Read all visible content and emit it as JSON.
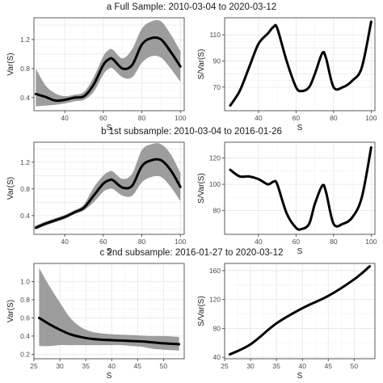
{
  "rows": [
    {
      "label": "a  Full Sample: 2010-03-04 to 2020-03-12"
    },
    {
      "label": "b  1st subsample: 2010-03-04 to 2016-01-26"
    },
    {
      "label": "c  2nd subsample: 2016-01-27 to 2020-03-12"
    }
  ],
  "chart_data": [
    {
      "id": "a-var",
      "type": "line",
      "xlabel": "S",
      "ylabel": "Var(S)",
      "xlim": [
        24,
        102
      ],
      "ylim": [
        0.22,
        1.5
      ],
      "grid": true,
      "legend": "none",
      "xticks": [
        40,
        60,
        80,
        100
      ],
      "yticks": [
        0.4,
        0.6,
        0.8,
        1.0,
        1.2,
        1.4
      ],
      "xtick_labels": [
        "40",
        "60",
        "80",
        "100"
      ],
      "ytick_labels": [
        "0.4",
        "",
        "0.8",
        "",
        "1.2",
        ""
      ],
      "series": [
        {
          "x": [
            25,
            30,
            35,
            40,
            45,
            50,
            55,
            60,
            63,
            65,
            70,
            75,
            80,
            85,
            90,
            95,
            100
          ],
          "y": [
            0.45,
            0.41,
            0.36,
            0.37,
            0.4,
            0.42,
            0.58,
            0.85,
            0.93,
            0.93,
            0.8,
            0.85,
            1.13,
            1.22,
            1.2,
            1.03,
            0.83
          ],
          "lower": [
            0.28,
            0.29,
            0.3,
            0.32,
            0.35,
            0.37,
            0.48,
            0.72,
            0.8,
            0.8,
            0.68,
            0.68,
            0.88,
            0.97,
            0.95,
            0.8,
            0.62
          ],
          "upper": [
            0.8,
            0.57,
            0.46,
            0.42,
            0.44,
            0.48,
            0.68,
            0.97,
            1.06,
            1.06,
            0.94,
            1.07,
            1.35,
            1.45,
            1.45,
            1.27,
            1.04
          ]
        }
      ]
    },
    {
      "id": "a-ratio",
      "type": "line",
      "xlabel": "S",
      "ylabel": "S/Var(S)",
      "xlim": [
        22,
        102
      ],
      "ylim": [
        52,
        123
      ],
      "grid": true,
      "legend": "none",
      "xticks": [
        40,
        60,
        80,
        100
      ],
      "yticks": [
        70,
        80,
        90,
        100,
        110
      ],
      "xtick_labels": [
        "40",
        "60",
        "80",
        "100"
      ],
      "ytick_labels": [
        "70",
        "",
        "90",
        "",
        "110"
      ],
      "series": [
        {
          "x": [
            25,
            30,
            35,
            40,
            45,
            48,
            50,
            55,
            60,
            63,
            67,
            70,
            74,
            76,
            80,
            85,
            90,
            95,
            100
          ],
          "y": [
            56,
            67,
            85,
            103,
            111,
            116,
            115,
            90,
            70,
            67,
            70,
            80,
            96,
            92,
            70,
            70,
            75,
            85,
            120
          ]
        }
      ]
    },
    {
      "id": "b-var",
      "type": "line",
      "xlabel": "S",
      "ylabel": "Var(S)",
      "xlim": [
        24,
        102
      ],
      "ylim": [
        0.12,
        1.5
      ],
      "grid": true,
      "legend": "none",
      "xticks": [
        40,
        60,
        80,
        100
      ],
      "yticks": [
        0.2,
        0.4,
        0.6,
        0.8,
        1.0,
        1.2,
        1.4
      ],
      "xtick_labels": [
        "40",
        "60",
        "80",
        "100"
      ],
      "ytick_labels": [
        "",
        "0.4",
        "",
        "0.8",
        "",
        "1.2",
        ""
      ],
      "series": [
        {
          "x": [
            25,
            30,
            35,
            40,
            45,
            50,
            55,
            60,
            63,
            65,
            70,
            75,
            80,
            85,
            90,
            95,
            100
          ],
          "y": [
            0.22,
            0.28,
            0.33,
            0.38,
            0.45,
            0.52,
            0.7,
            0.88,
            0.93,
            0.93,
            0.82,
            0.85,
            1.14,
            1.23,
            1.23,
            1.08,
            0.83
          ],
          "lower": [
            0.19,
            0.25,
            0.3,
            0.35,
            0.42,
            0.48,
            0.6,
            0.76,
            0.8,
            0.8,
            0.7,
            0.7,
            0.9,
            0.98,
            0.98,
            0.83,
            0.62
          ],
          "upper": [
            0.25,
            0.31,
            0.36,
            0.41,
            0.48,
            0.57,
            0.82,
            1.0,
            1.06,
            1.06,
            0.95,
            1.03,
            1.38,
            1.47,
            1.47,
            1.32,
            1.04
          ]
        }
      ]
    },
    {
      "id": "b-ratio",
      "type": "line",
      "xlabel": "S",
      "ylabel": "S/Var(S)",
      "xlim": [
        22,
        102
      ],
      "ylim": [
        62,
        132
      ],
      "grid": true,
      "legend": "none",
      "xticks": [
        40,
        60,
        80,
        100
      ],
      "yticks": [
        80,
        100,
        120
      ],
      "xtick_labels": [
        "40",
        "60",
        "80",
        "100"
      ],
      "ytick_labels": [
        "80",
        "100",
        "120"
      ],
      "series": [
        {
          "x": [
            25,
            30,
            35,
            40,
            45,
            48,
            50,
            55,
            60,
            63,
            67,
            70,
            74,
            76,
            80,
            85,
            90,
            95,
            100
          ],
          "y": [
            111,
            106,
            106,
            104,
            100,
            102,
            100,
            78,
            67,
            66,
            70,
            85,
            99,
            94,
            70,
            70,
            75,
            90,
            128
          ]
        }
      ]
    },
    {
      "id": "c-var",
      "type": "line",
      "xlabel": "S",
      "ylabel": "Var(S)",
      "xlim": [
        25,
        54
      ],
      "ylim": [
        0.15,
        1.2
      ],
      "grid": true,
      "legend": "none",
      "xticks": [
        25,
        30,
        35,
        40,
        45,
        50
      ],
      "yticks": [
        0.2,
        0.4,
        0.6,
        0.8,
        1.0
      ],
      "xtick_labels": [
        "25",
        "30",
        "35",
        "40",
        "45",
        "50"
      ],
      "ytick_labels": [
        "0.2",
        "0.4",
        "0.6",
        "0.8",
        "1.0"
      ],
      "series": [
        {
          "x": [
            26,
            28,
            30,
            32,
            34,
            36,
            38,
            40,
            42,
            44,
            46,
            48,
            50,
            53
          ],
          "y": [
            0.6,
            0.53,
            0.47,
            0.42,
            0.39,
            0.37,
            0.36,
            0.355,
            0.35,
            0.345,
            0.34,
            0.33,
            0.32,
            0.31
          ],
          "lower": [
            0.29,
            0.29,
            0.3,
            0.3,
            0.3,
            0.3,
            0.3,
            0.3,
            0.3,
            0.29,
            0.28,
            0.26,
            0.25,
            0.24
          ],
          "upper": [
            1.15,
            0.95,
            0.77,
            0.6,
            0.5,
            0.45,
            0.43,
            0.42,
            0.415,
            0.41,
            0.405,
            0.4,
            0.4,
            0.39
          ]
        }
      ]
    },
    {
      "id": "c-ratio",
      "type": "line",
      "xlabel": "S",
      "ylabel": "S/Var(S)",
      "xlim": [
        25,
        54
      ],
      "ylim": [
        38,
        170
      ],
      "grid": true,
      "legend": "none",
      "xticks": [
        25,
        30,
        35,
        40,
        45,
        50
      ],
      "yticks": [
        40,
        80,
        120,
        160
      ],
      "xtick_labels": [
        "25",
        "30",
        "35",
        "40",
        "45",
        "50"
      ],
      "ytick_labels": [
        "40",
        "80",
        "120",
        "160"
      ],
      "series": [
        {
          "x": [
            26,
            30,
            35,
            40,
            45,
            50,
            53
          ],
          "y": [
            44,
            58,
            87,
            108,
            125,
            148,
            166
          ]
        }
      ]
    }
  ]
}
